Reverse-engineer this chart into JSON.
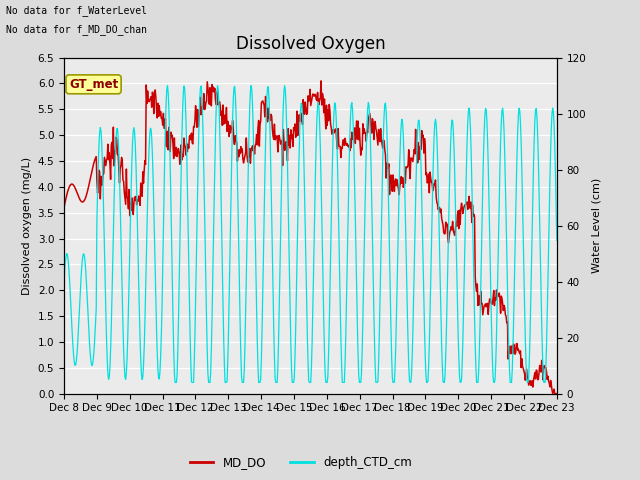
{
  "title": "Dissolved Oxygen",
  "ylabel_left": "Dissolved oxygen (mg/L)",
  "ylabel_right": "Water Level (cm)",
  "ylim_left": [
    0.0,
    6.5
  ],
  "ylim_right": [
    0,
    120
  ],
  "yticks_left": [
    0.0,
    0.5,
    1.0,
    1.5,
    2.0,
    2.5,
    3.0,
    3.5,
    4.0,
    4.5,
    5.0,
    5.5,
    6.0,
    6.5
  ],
  "yticks_right": [
    0,
    20,
    40,
    60,
    80,
    100,
    120
  ],
  "bg_color": "#dcdcdc",
  "plot_bg_color": "#ebebeb",
  "color_do": "#cc0000",
  "color_depth": "#00e0e0",
  "text_no_data1": "No data for f_WaterLevel",
  "text_no_data2": "No data for f_MD_DO_chan",
  "gt_met_label": "GT_met",
  "gt_met_bg": "#ffff99",
  "gt_met_border": "#999900",
  "legend_do": "MD_DO",
  "legend_depth": "depth_CTD_cm",
  "xtick_labels": [
    "Dec 8",
    "Dec 9",
    "Dec 10",
    "Dec 11",
    "Dec 12",
    "Dec 13",
    "Dec 14",
    "Dec 15",
    "Dec 16",
    "Dec 17",
    "Dec 18",
    "Dec 19",
    "Dec 20",
    "Dec 21",
    "Dec 22",
    "Dec 23"
  ],
  "title_fontsize": 12,
  "label_fontsize": 8,
  "tick_fontsize": 7.5
}
